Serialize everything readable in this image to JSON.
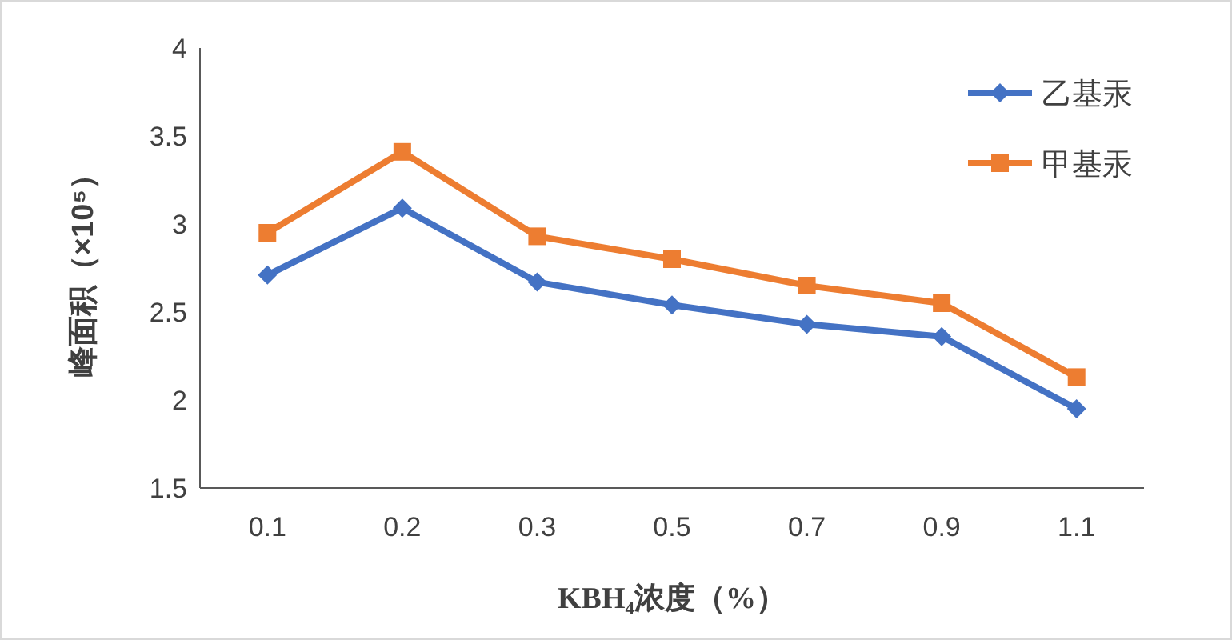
{
  "chart_data": {
    "type": "line",
    "xlabel": "KBH₄浓度（%）",
    "ylabel": "峰面积（×10⁵）",
    "categories": [
      "0.1",
      "0.2",
      "0.3",
      "0.5",
      "0.7",
      "0.9",
      "1.1"
    ],
    "series": [
      {
        "name": "乙基汞",
        "color": "#4472c4",
        "marker": "diamond",
        "values": [
          2.71,
          3.09,
          2.67,
          2.54,
          2.43,
          2.36,
          1.95
        ]
      },
      {
        "name": "甲基汞",
        "color": "#ed7d31",
        "marker": "square",
        "values": [
          2.95,
          3.41,
          2.93,
          2.8,
          2.65,
          2.55,
          2.13
        ]
      }
    ],
    "ylim": [
      1.5,
      4
    ],
    "yticks": [
      1.5,
      2,
      2.5,
      3,
      3.5,
      4
    ],
    "grid": false,
    "legend": "top right"
  }
}
